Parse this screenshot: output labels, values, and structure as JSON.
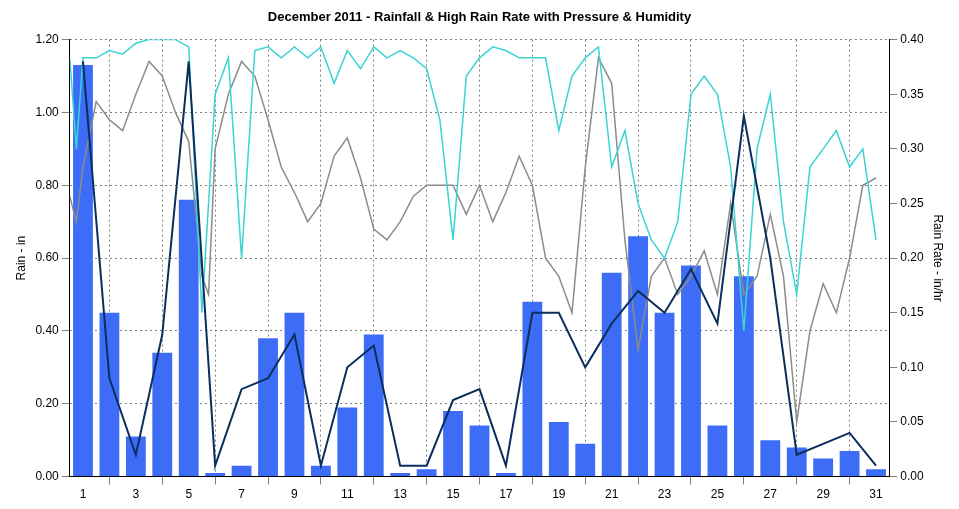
{
  "chart_data": {
    "type": "bar",
    "title": "December 2011 - Rainfall & High Rain Rate with Pressure & Humidity",
    "x": [
      1,
      2,
      3,
      4,
      5,
      6,
      7,
      8,
      9,
      10,
      11,
      12,
      13,
      14,
      15,
      16,
      17,
      18,
      19,
      20,
      21,
      22,
      23,
      24,
      25,
      26,
      27,
      28,
      29,
      30,
      31
    ],
    "xlim": [
      0.5,
      31.5
    ],
    "xticks": [
      1,
      3,
      5,
      7,
      9,
      11,
      13,
      15,
      17,
      19,
      21,
      23,
      25,
      27,
      29,
      31
    ],
    "ylabel": "Rain - in",
    "ylim": [
      0,
      1.2
    ],
    "yticks": [
      {
        "value": 0,
        "label": "0.00"
      },
      {
        "value": 0.2,
        "label": "0.20"
      },
      {
        "value": 0.4,
        "label": "0.40"
      },
      {
        "value": 0.6,
        "label": "0.60"
      },
      {
        "value": 0.8,
        "label": "0.80"
      },
      {
        "value": 1.0,
        "label": "1.00"
      },
      {
        "value": 1.2,
        "label": "1.20"
      }
    ],
    "y2label": "Rain Rate - in/hr",
    "y2lim": [
      0,
      0.4
    ],
    "y2ticks": [
      {
        "value": 0,
        "label": "0.00"
      },
      {
        "value": 0.05,
        "label": "0.05"
      },
      {
        "value": 0.1,
        "label": "0.10"
      },
      {
        "value": 0.15,
        "label": "0.15"
      },
      {
        "value": 0.2,
        "label": "0.20"
      },
      {
        "value": 0.25,
        "label": "0.25"
      },
      {
        "value": 0.3,
        "label": "0.30"
      },
      {
        "value": 0.35,
        "label": "0.35"
      },
      {
        "value": 0.4,
        "label": "0.40"
      }
    ],
    "grid": true,
    "series": [
      {
        "name": "Rainfall",
        "type": "bar",
        "color": "#3d6cf7",
        "values": [
          1.13,
          0.45,
          0.11,
          0.34,
          0.76,
          0.01,
          0.03,
          0.38,
          0.45,
          0.03,
          0.19,
          0.39,
          0.01,
          0.02,
          0.18,
          0.14,
          0.01,
          0.48,
          0.15,
          0.09,
          0.56,
          0.66,
          0.45,
          0.58,
          0.14,
          0.55,
          0.1,
          0.08,
          0.05,
          0.07,
          0.02
        ]
      },
      {
        "name": "Pressure",
        "type": "line",
        "color": "#8c8c8c",
        "marker": "none",
        "x": [
          0.5,
          0.75,
          1,
          1.5,
          2,
          2.5,
          3,
          3.5,
          4,
          4.5,
          5,
          5.5,
          5.75,
          6,
          6.5,
          7,
          7.5,
          8,
          8.5,
          9,
          9.5,
          10,
          10.5,
          11,
          11.5,
          12,
          12.5,
          13,
          13.5,
          14,
          14.5,
          15,
          15.5,
          16,
          16.5,
          17,
          17.5,
          18,
          18.5,
          19,
          19.5,
          20,
          20.5,
          21,
          21.5,
          22,
          22.5,
          23,
          23.5,
          24,
          24.5,
          25,
          25.5,
          26,
          26.5,
          27,
          27.5,
          28,
          28.5,
          29,
          29.5,
          30,
          30.5,
          31
        ],
        "values": [
          0.77,
          0.7,
          0.85,
          1.03,
          0.98,
          0.95,
          1.05,
          1.14,
          1.1,
          1.0,
          0.92,
          0.55,
          0.5,
          0.9,
          1.05,
          1.14,
          1.1,
          0.98,
          0.85,
          0.78,
          0.7,
          0.75,
          0.88,
          0.93,
          0.82,
          0.68,
          0.65,
          0.7,
          0.77,
          0.8,
          0.8,
          0.8,
          0.72,
          0.8,
          0.7,
          0.78,
          0.88,
          0.8,
          0.6,
          0.55,
          0.45,
          0.85,
          1.15,
          1.08,
          0.65,
          0.35,
          0.55,
          0.6,
          0.5,
          0.55,
          0.62,
          0.5,
          0.75,
          0.5,
          0.55,
          0.72,
          0.55,
          0.15,
          0.4,
          0.53,
          0.45,
          0.6,
          0.8,
          0.82
        ]
      },
      {
        "name": "Humidity",
        "type": "line",
        "color": "#3ad4d4",
        "marker": "none",
        "x": [
          0.5,
          0.75,
          1,
          1.5,
          2,
          2.5,
          3,
          3.5,
          4,
          4.5,
          5,
          5.5,
          6,
          6.5,
          7,
          7.5,
          8,
          8.5,
          9,
          9.5,
          10,
          10.5,
          11,
          11.5,
          12,
          12.5,
          13,
          13.5,
          14,
          14.5,
          15,
          15.5,
          16,
          16.5,
          17,
          17.5,
          18,
          18.5,
          19,
          19.5,
          20,
          20.5,
          21,
          21.5,
          22,
          22.5,
          23,
          23.5,
          24,
          24.5,
          25,
          25.5,
          26,
          26.5,
          27,
          27.5,
          28,
          28.5,
          29,
          29.5,
          30,
          30.5,
          31
        ],
        "values": [
          1.15,
          0.9,
          1.15,
          1.15,
          1.17,
          1.16,
          1.19,
          1.2,
          1.2,
          1.2,
          1.18,
          0.45,
          1.05,
          1.15,
          0.6,
          1.17,
          1.18,
          1.15,
          1.18,
          1.15,
          1.18,
          1.08,
          1.17,
          1.12,
          1.18,
          1.15,
          1.17,
          1.15,
          1.12,
          0.98,
          0.65,
          1.1,
          1.15,
          1.18,
          1.17,
          1.15,
          1.15,
          1.15,
          0.95,
          1.1,
          1.15,
          1.18,
          0.85,
          0.95,
          0.75,
          0.65,
          0.6,
          0.7,
          1.05,
          1.1,
          1.05,
          0.85,
          0.4,
          0.9,
          1.05,
          0.7,
          0.5,
          0.85,
          0.9,
          0.95,
          0.85,
          0.9,
          0.65
        ]
      },
      {
        "name": "High Rain Rate",
        "type": "line",
        "axis": "y2",
        "color": "#0b2f5c",
        "marker": "none",
        "values": [
          0.38,
          0.09,
          0.02,
          0.13,
          0.38,
          0.01,
          0.08,
          0.09,
          0.13,
          0.01,
          0.1,
          0.12,
          0.01,
          0.01,
          0.07,
          0.08,
          0.01,
          0.15,
          0.15,
          0.1,
          0.14,
          0.17,
          0.15,
          0.19,
          0.14,
          0.33,
          0.2,
          0.02,
          0.03,
          0.04,
          0.01
        ]
      }
    ]
  }
}
